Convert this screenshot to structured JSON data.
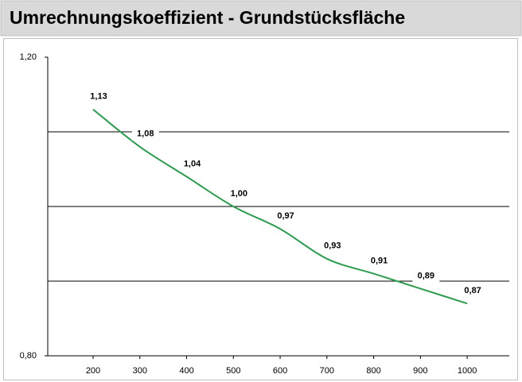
{
  "chart_data": {
    "type": "line",
    "title": "Umrechnungskoeffizient - Grundstücksfläche",
    "x": [
      200,
      300,
      400,
      500,
      600,
      700,
      800,
      900,
      1000
    ],
    "xlim": [
      103,
      1090
    ],
    "xticks": [
      200,
      300,
      400,
      500,
      600,
      700,
      800,
      900,
      1000
    ],
    "series": [
      {
        "color": "#2e9b50",
        "values": [
          1.13,
          1.08,
          1.04,
          1.0,
          0.97,
          0.93,
          0.91,
          0.89,
          0.87
        ],
        "value_labels": [
          "1,13",
          "1,08",
          "1,04",
          "1,00",
          "0,97",
          "0,93",
          "0,91",
          "0,89",
          "0,87"
        ]
      }
    ],
    "ylim": [
      0.8,
      1.2
    ],
    "yticks": [
      {
        "value": 0.8,
        "label": "0,80"
      },
      {
        "value": 1.2,
        "label": "1,20"
      }
    ],
    "ygrid": [
      0.9,
      1.0,
      1.1
    ],
    "grid": true
  }
}
